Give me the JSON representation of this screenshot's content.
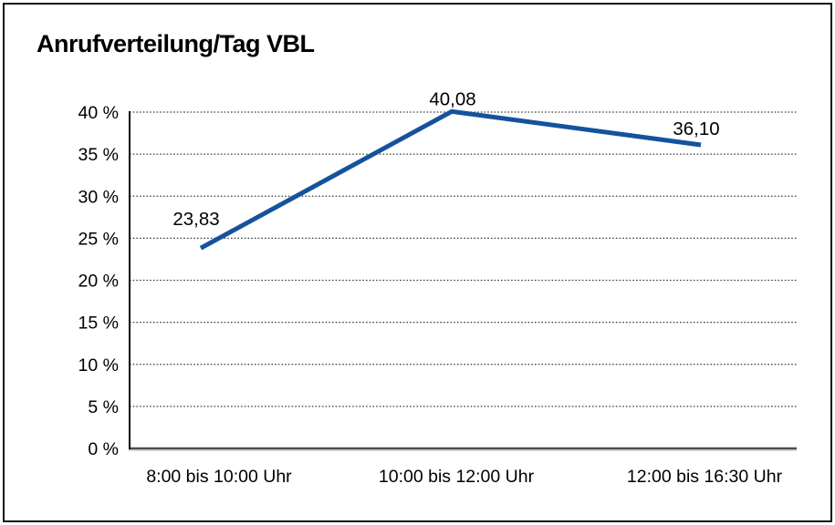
{
  "title": "Anrufverteilung/Tag VBL",
  "colors": {
    "line": "#15529E",
    "grid": "#3d3d3d",
    "axis": "#000000",
    "baseline": "#4c4c4c",
    "baseline_shadow": "#c8c8c8",
    "border": "#0f0f0f",
    "background": "#ffffff",
    "text": "#000000"
  },
  "chart_data": {
    "type": "line",
    "title": "Anrufverteilung/Tag VBL",
    "categories": [
      "8:00 bis 10:00 Uhr",
      "10:00 bis 12:00 Uhr",
      "12:00 bis 16:30 Uhr"
    ],
    "values": [
      23.83,
      40.08,
      36.1
    ],
    "value_labels": [
      "23,83",
      "40,08",
      "36,10"
    ],
    "xlabel": "",
    "ylabel": "",
    "ylim": [
      0,
      40
    ],
    "y_ticks": [
      0,
      5,
      10,
      15,
      20,
      25,
      30,
      35,
      40
    ],
    "y_tick_labels": [
      "0 %",
      "5 %",
      "10 %",
      "15 %",
      "20 %",
      "25 %",
      "30 %",
      "35 %",
      "40 %"
    ],
    "grid": "horizontal-dotted",
    "legend": "none",
    "markers": "none"
  }
}
